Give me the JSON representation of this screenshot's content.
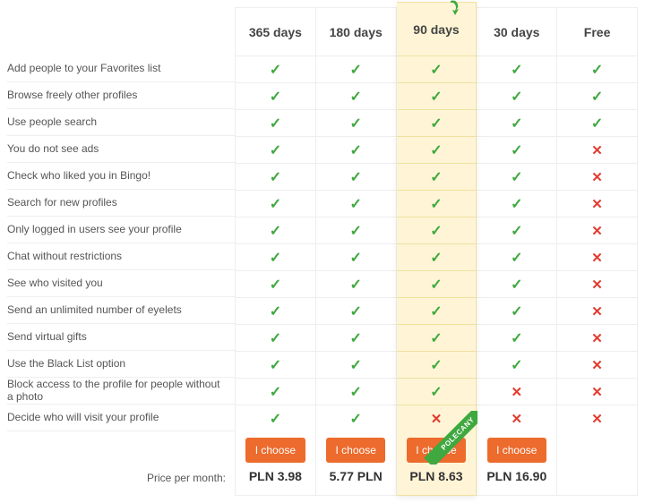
{
  "colors": {
    "check": "#3fa83f",
    "cross": "#e23b2e",
    "button_bg": "#ec6b2d",
    "button_text": "#ffffff",
    "highlight_bg": "#fff5d6",
    "border": "#eeeeee",
    "text": "#555555",
    "ribbon_bg": "#3fa83f"
  },
  "ribbon_text": "POLECANY",
  "features": [
    "Add people to your Favorites list",
    "Browse freely other profiles",
    "Use people search",
    "You do not see ads",
    "Check who liked you in Bingo!",
    "Search for new profiles",
    "Only logged in users see your profile",
    "Chat without restrictions",
    "See who visited you",
    "Send an unlimited number of eyelets",
    "Send virtual gifts",
    "Use the Black List option",
    "Block access to the profile for people without a photo",
    "Decide who will visit your profile"
  ],
  "price_label": "Price per month:",
  "choose_label": "I choose",
  "plans": [
    {
      "id": "365",
      "title": "365 days",
      "highlighted": false,
      "has_button": true,
      "price": "PLN 3.98",
      "cells": [
        true,
        true,
        true,
        true,
        true,
        true,
        true,
        true,
        true,
        true,
        true,
        true,
        true,
        true
      ]
    },
    {
      "id": "180",
      "title": "180 days",
      "highlighted": false,
      "has_button": true,
      "price": "5.77 PLN",
      "cells": [
        true,
        true,
        true,
        true,
        true,
        true,
        true,
        true,
        true,
        true,
        true,
        true,
        true,
        true
      ]
    },
    {
      "id": "90",
      "title": "90 days",
      "highlighted": true,
      "has_button": true,
      "price": "PLN 8.63",
      "cells": [
        true,
        true,
        true,
        true,
        true,
        true,
        true,
        true,
        true,
        true,
        true,
        true,
        true,
        false
      ]
    },
    {
      "id": "30",
      "title": "30 days",
      "highlighted": false,
      "has_button": true,
      "price": "PLN 16.90",
      "cells": [
        true,
        true,
        true,
        true,
        true,
        true,
        true,
        true,
        true,
        true,
        true,
        true,
        false,
        false
      ]
    },
    {
      "id": "free",
      "title": "Free",
      "highlighted": false,
      "has_button": false,
      "price": "",
      "cells": [
        true,
        true,
        true,
        false,
        false,
        false,
        false,
        false,
        false,
        false,
        false,
        false,
        false,
        false
      ]
    }
  ]
}
